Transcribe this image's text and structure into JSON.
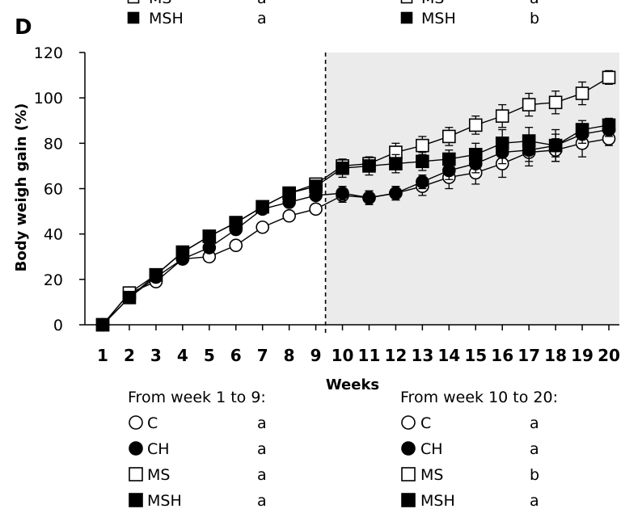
{
  "panel_label": "D",
  "top_legend_fragment": {
    "left": [
      {
        "series": "MS",
        "letter": "a"
      },
      {
        "series": "MSH",
        "letter": "a"
      }
    ],
    "right": [
      {
        "series": "MS",
        "letter": "a"
      },
      {
        "series": "MSH",
        "letter": "b"
      }
    ]
  },
  "bottom_legend": {
    "groups": [
      {
        "heading": "From week 1 to 9:",
        "entries": [
          {
            "series": "C",
            "letter": "a"
          },
          {
            "series": "CH",
            "letter": "a"
          },
          {
            "series": "MS",
            "letter": "a"
          },
          {
            "series": "MSH",
            "letter": "a"
          }
        ]
      },
      {
        "heading": "From week 10 to 20:",
        "entries": [
          {
            "series": "C",
            "letter": "a"
          },
          {
            "series": "CH",
            "letter": "a"
          },
          {
            "series": "MS",
            "letter": "b"
          },
          {
            "series": "MSH",
            "letter": "a"
          }
        ]
      }
    ]
  },
  "chart_data": {
    "type": "line",
    "xlabel": "Weeks",
    "ylabel": "Body weigh gain (%)",
    "x": [
      1,
      2,
      3,
      4,
      5,
      6,
      7,
      8,
      9,
      10,
      11,
      12,
      13,
      14,
      15,
      16,
      17,
      18,
      19,
      20
    ],
    "yticks": [
      0,
      20,
      40,
      60,
      80,
      100,
      120
    ],
    "ylim": [
      0,
      120
    ],
    "shaded_region": [
      9,
      20
    ],
    "divider_x": 9,
    "series": [
      {
        "name": "C",
        "marker": "circle",
        "fill": "#ffffff",
        "values": [
          0,
          14,
          19,
          29,
          30,
          35,
          43,
          48,
          51,
          57,
          56,
          58,
          61,
          65,
          67,
          71,
          76,
          77,
          80,
          82
        ],
        "err": [
          0,
          1,
          1,
          1,
          1,
          1,
          1,
          1,
          2,
          3,
          3,
          3,
          4,
          5,
          5,
          6,
          6,
          5,
          6,
          3
        ]
      },
      {
        "name": "CH",
        "marker": "circle",
        "fill": "#000000",
        "values": [
          0,
          12,
          21,
          29,
          34,
          42,
          51,
          54,
          57,
          58,
          56,
          58,
          63,
          68,
          71,
          76,
          77,
          79,
          84,
          86
        ],
        "err": [
          0,
          1,
          1,
          1,
          1,
          1,
          2,
          2,
          2,
          3,
          3,
          3,
          3,
          4,
          4,
          5,
          5,
          5,
          4,
          3
        ]
      },
      {
        "name": "MS",
        "marker": "square",
        "fill": "#ffffff",
        "values": [
          0,
          14,
          22,
          32,
          39,
          45,
          52,
          58,
          62,
          70,
          71,
          76,
          79,
          83,
          88,
          92,
          97,
          98,
          102,
          109
        ],
        "err": [
          0,
          1,
          1,
          1,
          1,
          1,
          2,
          2,
          2,
          3,
          3,
          4,
          4,
          4,
          4,
          5,
          5,
          5,
          5,
          3
        ]
      },
      {
        "name": "MSH",
        "marker": "square",
        "fill": "#000000",
        "values": [
          0,
          12,
          22,
          32,
          39,
          45,
          52,
          58,
          61,
          69,
          70,
          71,
          72,
          73,
          75,
          80,
          81,
          79,
          86,
          88
        ],
        "err": [
          0,
          1,
          1,
          1,
          1,
          1,
          2,
          2,
          2,
          4,
          4,
          4,
          4,
          4,
          5,
          6,
          6,
          7,
          4,
          3
        ]
      }
    ]
  }
}
